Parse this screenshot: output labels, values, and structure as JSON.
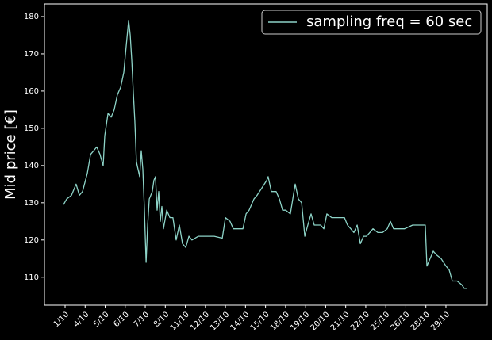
{
  "chart_data": {
    "type": "line",
    "ylabel": "Mid price [€]",
    "x": [
      -0.08,
      0.08,
      0.32,
      0.55,
      0.71,
      0.87,
      1.11,
      1.27,
      1.43,
      1.58,
      1.74,
      1.9,
      1.98,
      2.14,
      2.3,
      2.45,
      2.61,
      2.77,
      2.93,
      3.01,
      3.17,
      3.25,
      3.33,
      3.4,
      3.48,
      3.56,
      3.72,
      3.8,
      3.88,
      3.96,
      4.04,
      4.12,
      4.2,
      4.35,
      4.43,
      4.51,
      4.59,
      4.67,
      4.75,
      4.83,
      4.91,
      5.07,
      5.23,
      5.38,
      5.54,
      5.7,
      5.86,
      6.02,
      6.18,
      6.33,
      6.65,
      7.05,
      7.44,
      7.84,
      8.0,
      8.23,
      8.39,
      8.63,
      8.87,
      9.03,
      9.18,
      9.42,
      9.58,
      9.82,
      10.06,
      10.13,
      10.29,
      10.53,
      10.69,
      10.85,
      11.01,
      11.24,
      11.48,
      11.64,
      11.8,
      11.96,
      12.11,
      12.27,
      12.43,
      12.59,
      12.75,
      12.91,
      13.06,
      13.3,
      13.54,
      13.78,
      13.94,
      14.09,
      14.25,
      14.41,
      14.57,
      14.73,
      14.89,
      15.04,
      15.2,
      15.36,
      15.6,
      15.84,
      16.07,
      16.23,
      16.39,
      16.63,
      16.94,
      17.34,
      17.74,
      17.97,
      18.05,
      18.21,
      18.37,
      18.53,
      18.76,
      19.0,
      19.16,
      19.32,
      19.56,
      19.79,
      19.91,
      20.03
    ],
    "series": [
      {
        "name": "sampling freq = 60 sec",
        "color": "#8dd3c7",
        "values": [
          129.5,
          131,
          132,
          135,
          132,
          133,
          138,
          143,
          144,
          145,
          143,
          140,
          148,
          154,
          153,
          155,
          159,
          161,
          165,
          170,
          179,
          175,
          168,
          160,
          152,
          141,
          137,
          144,
          139,
          128,
          114,
          124,
          131,
          133,
          136,
          137,
          128,
          133,
          125,
          129,
          123,
          128,
          126,
          126,
          120,
          124,
          119,
          118,
          121,
          120,
          121,
          121,
          121,
          120.5,
          126,
          125,
          123,
          123,
          123,
          127,
          128,
          131,
          132,
          134,
          136,
          137,
          133,
          133,
          131,
          128,
          128,
          127,
          135,
          131,
          130,
          121,
          124,
          127,
          124,
          124,
          124,
          123,
          127,
          126,
          126,
          126,
          126,
          124,
          123,
          122,
          124,
          119,
          121,
          121,
          122,
          123,
          122,
          122,
          123,
          125,
          123,
          123,
          123,
          124,
          124,
          124,
          113,
          115,
          117,
          116,
          115,
          113,
          112,
          109,
          109,
          108,
          107,
          107
        ]
      }
    ],
    "xlim": [
      -1.03,
      21.06
    ],
    "xticks": [
      {
        "value": 0,
        "label": "1/10"
      },
      {
        "value": 1,
        "label": "4/10"
      },
      {
        "value": 2,
        "label": "5/10"
      },
      {
        "value": 3,
        "label": "6/10"
      },
      {
        "value": 4,
        "label": "7/10"
      },
      {
        "value": 5,
        "label": "8/10"
      },
      {
        "value": 6,
        "label": "11/10"
      },
      {
        "value": 7,
        "label": "12/10"
      },
      {
        "value": 8,
        "label": "13/10"
      },
      {
        "value": 9,
        "label": "14/10"
      },
      {
        "value": 10,
        "label": "15/10"
      },
      {
        "value": 11,
        "label": "18/10"
      },
      {
        "value": 12,
        "label": "19/10"
      },
      {
        "value": 13,
        "label": "20/10"
      },
      {
        "value": 14,
        "label": "21/10"
      },
      {
        "value": 15,
        "label": "22/10"
      },
      {
        "value": 16,
        "label": "25/10"
      },
      {
        "value": 17,
        "label": "26/10"
      },
      {
        "value": 18,
        "label": "28/10"
      },
      {
        "value": 19,
        "label": "29/10"
      }
    ],
    "ylim": [
      102.5,
      183.4
    ],
    "yticks": [
      110,
      120,
      130,
      140,
      150,
      160,
      170,
      180
    ],
    "legend": "upper right"
  }
}
